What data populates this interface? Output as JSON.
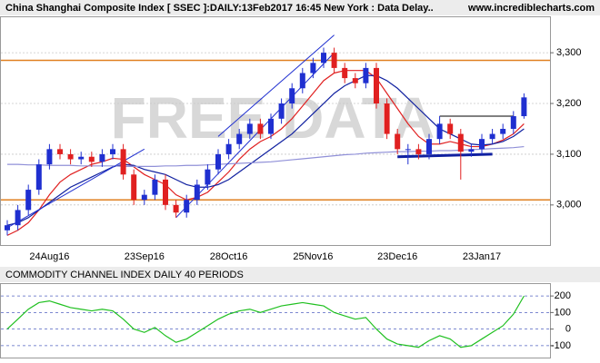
{
  "header": {
    "title": "China Shanghai Composite Index [ SSEC ]:DAILY:13Feb2017 16:45 New York : Data Delay..",
    "site": "www.incrediblecharts.com"
  },
  "chart_data": [
    {
      "type": "candlestick",
      "watermark": "FREE DATA",
      "categories": [
        null,
        null,
        null,
        null,
        "24Aug16",
        null,
        null,
        null,
        null,
        null,
        null,
        null,
        null,
        "23Sep16",
        null,
        null,
        null,
        null,
        null,
        null,
        null,
        "28Oct16",
        null,
        null,
        null,
        null,
        null,
        null,
        null,
        "25Nov16",
        null,
        null,
        null,
        null,
        null,
        null,
        null,
        "23Dec16",
        null,
        null,
        null,
        null,
        null,
        null,
        null,
        "23Jan17",
        null,
        null,
        null,
        null
      ],
      "open": [
        2950,
        2960,
        2990,
        3030,
        3080,
        3110,
        3100,
        3090,
        3095,
        3085,
        3100,
        3110,
        3060,
        3010,
        3020,
        3050,
        3000,
        2985,
        3010,
        3040,
        3070,
        3100,
        3120,
        3140,
        3160,
        3140,
        3170,
        3200,
        3230,
        3260,
        3280,
        3300,
        3270,
        3250,
        3240,
        3270,
        3200,
        3140,
        3110,
        3110,
        3100,
        3130,
        3160,
        3140,
        3105,
        3110,
        3130,
        3140,
        3150,
        3175
      ],
      "high": [
        2970,
        3000,
        3040,
        3090,
        3120,
        3120,
        3110,
        3105,
        3105,
        3110,
        3120,
        3120,
        3070,
        3030,
        3060,
        3060,
        3010,
        3020,
        3050,
        3080,
        3110,
        3130,
        3150,
        3170,
        3170,
        3180,
        3210,
        3240,
        3270,
        3290,
        3310,
        3310,
        3280,
        3260,
        3280,
        3280,
        3210,
        3150,
        3120,
        3120,
        3140,
        3175,
        3170,
        3150,
        3120,
        3140,
        3150,
        3160,
        3185,
        3220
      ],
      "low": [
        2940,
        2950,
        2980,
        3020,
        3070,
        3090,
        3080,
        3080,
        3075,
        3075,
        3090,
        3050,
        3000,
        3000,
        3010,
        2990,
        2975,
        2975,
        3000,
        3030,
        3060,
        3090,
        3110,
        3130,
        3130,
        3130,
        3160,
        3190,
        3220,
        3250,
        3270,
        3260,
        3240,
        3230,
        3230,
        3190,
        3130,
        3100,
        3080,
        3090,
        3090,
        3120,
        3130,
        3050,
        3095,
        3100,
        3120,
        3130,
        3140,
        3170
      ],
      "close": [
        2960,
        2990,
        3030,
        3080,
        3110,
        3100,
        3090,
        3095,
        3085,
        3100,
        3110,
        3060,
        3010,
        3020,
        3050,
        3000,
        2985,
        3010,
        3040,
        3070,
        3100,
        3120,
        3140,
        3160,
        3140,
        3170,
        3200,
        3230,
        3260,
        3280,
        3300,
        3270,
        3250,
        3240,
        3270,
        3200,
        3140,
        3110,
        3110,
        3100,
        3130,
        3160,
        3140,
        3105,
        3110,
        3130,
        3140,
        3150,
        3175,
        3212
      ],
      "up_color": "#1f2fd0",
      "down_color": "#e02020",
      "series": [
        {
          "color": "#e02020",
          "values": [
            2940,
            2950,
            2965,
            2990,
            3020,
            3045,
            3060,
            3070,
            3080,
            3085,
            3092,
            3090,
            3075,
            3060,
            3050,
            3040,
            3020,
            3010,
            3015,
            3025,
            3045,
            3065,
            3090,
            3110,
            3125,
            3135,
            3150,
            3170,
            3195,
            3220,
            3245,
            3260,
            3265,
            3265,
            3265,
            3250,
            3220,
            3190,
            3160,
            3135,
            3120,
            3120,
            3125,
            3120,
            3115,
            3115,
            3120,
            3128,
            3140,
            3160
          ]
        },
        {
          "color": "#1020a0",
          "values": [
            2960,
            2965,
            2975,
            2990,
            3005,
            3020,
            3035,
            3045,
            3055,
            3065,
            3075,
            3080,
            3078,
            3070,
            3065,
            3060,
            3050,
            3040,
            3035,
            3035,
            3040,
            3050,
            3065,
            3080,
            3095,
            3110,
            3125,
            3140,
            3160,
            3180,
            3200,
            3220,
            3235,
            3245,
            3255,
            3255,
            3245,
            3230,
            3210,
            3190,
            3170,
            3150,
            3140,
            3130,
            3120,
            3118,
            3120,
            3125,
            3135,
            3150
          ]
        },
        {
          "color": "#9090d8",
          "values": [
            3080,
            3080,
            3079,
            3079,
            3078,
            3078,
            3078,
            3077,
            3077,
            3077,
            3077,
            3076,
            3076,
            3076,
            3076,
            3077,
            3077,
            3078,
            3078,
            3079,
            3080,
            3081,
            3082,
            3083,
            3084,
            3085,
            3087,
            3089,
            3091,
            3093,
            3095,
            3097,
            3099,
            3100,
            3102,
            3103,
            3104,
            3105,
            3105,
            3106,
            3106,
            3107,
            3107,
            3108,
            3109,
            3110,
            3111,
            3112,
            3113,
            3115
          ]
        }
      ],
      "hlines": [
        3285,
        3010
      ],
      "hline_color": "#e08020",
      "trendlines": [
        {
          "color": "#1f2fd0",
          "x": [
            0,
            13
          ],
          "y": [
            2955,
            3110
          ]
        },
        {
          "color": "#1f2fd0",
          "x": [
            16,
            31
          ],
          "y": [
            2975,
            3300
          ]
        },
        {
          "color": "#1f2fd0",
          "x": [
            20,
            31
          ],
          "y": [
            3135,
            3335
          ]
        },
        {
          "color": "#1020a0",
          "x": [
            37,
            46
          ],
          "y": [
            3095,
            3100
          ]
        },
        {
          "color": "#000000",
          "x": [
            41,
            48
          ],
          "y": [
            3175,
            3175
          ]
        }
      ],
      "ylim": [
        2921,
        3370
      ],
      "yticks": [
        {
          "value": 3000,
          "label": "3,000"
        },
        {
          "value": 3100,
          "label": "3,100"
        },
        {
          "value": 3200,
          "label": "3,200"
        },
        {
          "value": 3300,
          "label": "3,300"
        }
      ]
    },
    {
      "type": "line",
      "title": "COMMODITY CHANNEL INDEX DAILY 40 PERIODS",
      "series": [
        {
          "color": "#20c020",
          "values": [
            0,
            60,
            120,
            160,
            170,
            150,
            130,
            120,
            110,
            120,
            110,
            60,
            0,
            -20,
            10,
            -40,
            -80,
            -60,
            -20,
            20,
            60,
            90,
            110,
            120,
            100,
            120,
            140,
            150,
            160,
            150,
            140,
            100,
            80,
            60,
            70,
            0,
            -60,
            -90,
            -100,
            -110,
            -70,
            -40,
            -60,
            -110,
            -100,
            -60,
            -20,
            20,
            90,
            200
          ]
        }
      ],
      "ylim": [
        -172,
        272
      ],
      "yticks": [
        -100,
        0,
        100,
        200
      ]
    }
  ]
}
